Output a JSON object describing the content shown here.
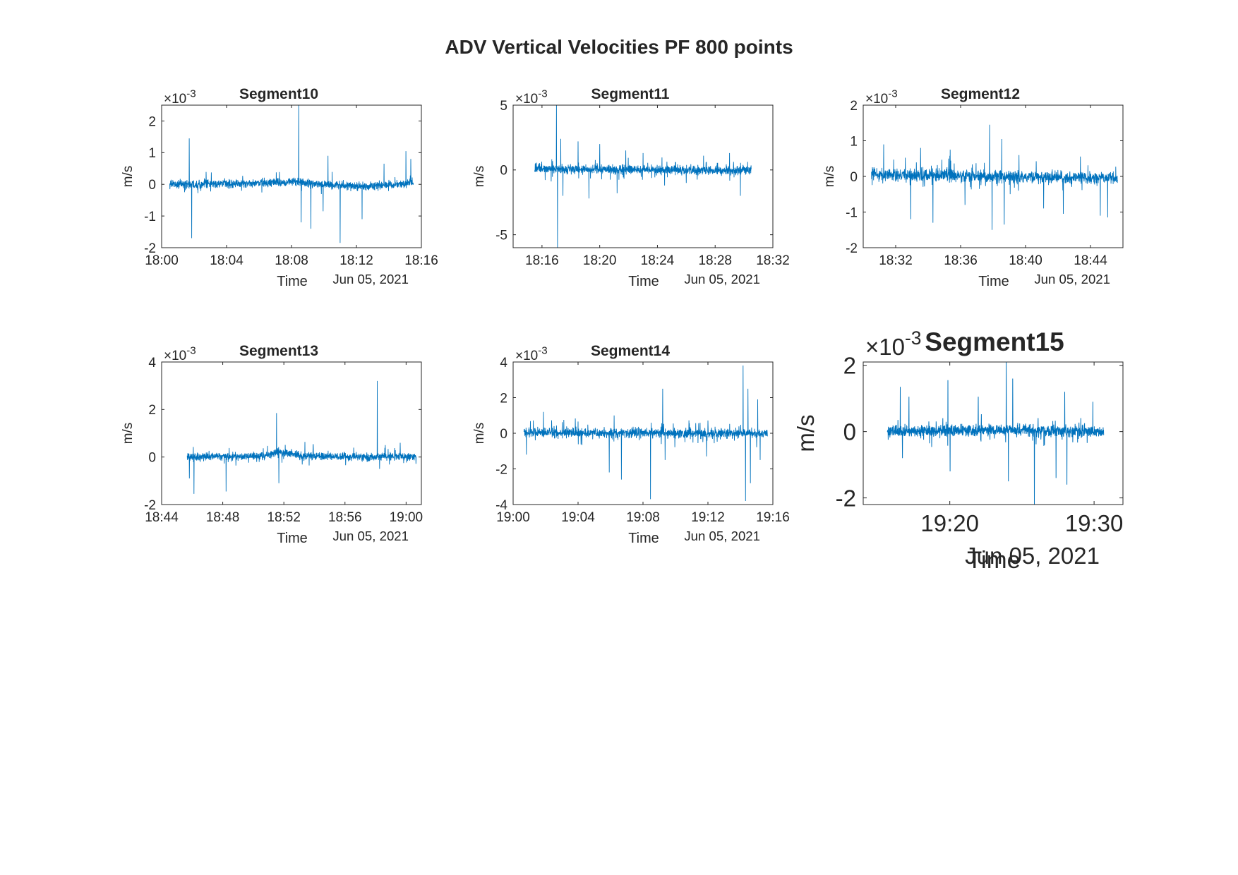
{
  "figure": {
    "title": "ADV Vertical Velocities PF 800 points",
    "line_color": "#0072BD"
  },
  "chart_data": [
    {
      "type": "line",
      "title": "Segment10",
      "xlabel": "Time",
      "ylabel": "m/s",
      "date_label": "Jun 05, 2021",
      "exponent_label": "×10",
      "exponent_power": "-3",
      "x_ticks": [
        "18:00",
        "18:04",
        "18:08",
        "18:12",
        "18:16"
      ],
      "x_range": [
        "18:00",
        "18:16"
      ],
      "data_span": [
        "18:00:30",
        "18:15:30"
      ],
      "y_ticks": [
        "-2",
        "-1",
        "0",
        "1",
        "2"
      ],
      "ylim": [
        -2,
        2.5
      ],
      "series": [
        {
          "baseline": [
            [
              0,
              0.0
            ],
            [
              0.3,
              0.02
            ],
            [
              0.5,
              0.08
            ],
            [
              0.65,
              0.0
            ],
            [
              0.8,
              -0.08
            ],
            [
              1,
              0.05
            ]
          ],
          "noise": 0.14,
          "spikes": [
            [
              0.08,
              1.45
            ],
            [
              0.09,
              -1.7
            ],
            [
              0.53,
              2.5
            ],
            [
              0.54,
              -1.2
            ],
            [
              0.58,
              -1.4
            ],
            [
              0.63,
              -0.85
            ],
            [
              0.65,
              0.9
            ],
            [
              0.7,
              -1.85
            ],
            [
              0.79,
              -1.1
            ],
            [
              0.88,
              0.65
            ],
            [
              0.97,
              1.05
            ],
            [
              0.99,
              0.8
            ]
          ]
        }
      ],
      "grid": false,
      "legend": "none"
    },
    {
      "type": "line",
      "title": "Segment11",
      "xlabel": "Time",
      "ylabel": "m/s",
      "date_label": "Jun 05, 2021",
      "exponent_label": "×10",
      "exponent_power": "-3",
      "x_ticks": [
        "18:16",
        "18:20",
        "18:24",
        "18:28",
        "18:32"
      ],
      "x_range": [
        "18:14",
        "18:32"
      ],
      "data_span": [
        "18:15:30",
        "18:30:30"
      ],
      "y_ticks": [
        "-5",
        "0",
        "5"
      ],
      "ylim": [
        -6,
        5
      ],
      "series": [
        {
          "baseline": [
            [
              0,
              0.1
            ],
            [
              0.5,
              0.0
            ],
            [
              1,
              -0.05
            ]
          ],
          "noise": 0.35,
          "spikes": [
            [
              0.1,
              5.0
            ],
            [
              0.105,
              -6.0
            ],
            [
              0.12,
              2.4
            ],
            [
              0.13,
              -2.0
            ],
            [
              0.2,
              2.2
            ],
            [
              0.25,
              -2.2
            ],
            [
              0.3,
              2.0
            ],
            [
              0.38,
              -1.8
            ],
            [
              0.42,
              1.5
            ],
            [
              0.5,
              1.3
            ],
            [
              0.6,
              -1.2
            ],
            [
              0.7,
              -1.0
            ],
            [
              0.78,
              1.1
            ],
            [
              0.9,
              1.3
            ],
            [
              0.95,
              -2.0
            ]
          ]
        }
      ],
      "grid": false,
      "legend": "none"
    },
    {
      "type": "line",
      "title": "Segment12",
      "xlabel": "Time",
      "ylabel": "m/s",
      "date_label": "Jun 05, 2021",
      "exponent_label": "×10",
      "exponent_power": "-3",
      "x_ticks": [
        "18:32",
        "18:36",
        "18:40",
        "18:44"
      ],
      "x_range": [
        "18:30",
        "18:46"
      ],
      "data_span": [
        "18:30:30",
        "18:45:40"
      ],
      "y_ticks": [
        "-2",
        "-1",
        "0",
        "1",
        "2"
      ],
      "ylim": [
        -2,
        2
      ],
      "series": [
        {
          "baseline": [
            [
              0,
              0.05
            ],
            [
              0.5,
              0.0
            ],
            [
              1,
              -0.05
            ]
          ],
          "noise": 0.18,
          "spikes": [
            [
              0.05,
              0.9
            ],
            [
              0.16,
              -1.2
            ],
            [
              0.2,
              0.8
            ],
            [
              0.25,
              -1.3
            ],
            [
              0.32,
              0.75
            ],
            [
              0.38,
              -0.8
            ],
            [
              0.48,
              1.45
            ],
            [
              0.49,
              -1.5
            ],
            [
              0.53,
              1.05
            ],
            [
              0.54,
              -1.35
            ],
            [
              0.6,
              0.6
            ],
            [
              0.7,
              -0.9
            ],
            [
              0.78,
              -1.05
            ],
            [
              0.93,
              -1.1
            ],
            [
              0.96,
              -1.15
            ]
          ]
        }
      ],
      "grid": false,
      "legend": "none"
    },
    {
      "type": "line",
      "title": "Segment13",
      "xlabel": "Time",
      "ylabel": "m/s",
      "date_label": "Jun 05, 2021",
      "exponent_label": "×10",
      "exponent_power": "-3",
      "x_ticks": [
        "18:44",
        "18:48",
        "18:52",
        "18:56",
        "19:00"
      ],
      "x_range": [
        "18:44",
        "19:01"
      ],
      "data_span": [
        "18:45:40",
        "19:00:40"
      ],
      "y_ticks": [
        "-2",
        "0",
        "2",
        "4"
      ],
      "ylim": [
        -2,
        4
      ],
      "series": [
        {
          "baseline": [
            [
              0,
              0.0
            ],
            [
              0.35,
              0.05
            ],
            [
              0.4,
              0.25
            ],
            [
              0.5,
              0.05
            ],
            [
              0.8,
              0.0
            ],
            [
              1,
              0.05
            ]
          ],
          "noise": 0.17,
          "spikes": [
            [
              0.01,
              -0.9
            ],
            [
              0.03,
              -1.55
            ],
            [
              0.17,
              -1.45
            ],
            [
              0.39,
              1.85
            ],
            [
              0.4,
              -1.1
            ],
            [
              0.83,
              3.2
            ],
            [
              0.84,
              -0.5
            ],
            [
              0.93,
              0.6
            ]
          ]
        }
      ],
      "grid": false,
      "legend": "none"
    },
    {
      "type": "line",
      "title": "Segment14",
      "xlabel": "Time",
      "ylabel": "m/s",
      "date_label": "Jun 05, 2021",
      "exponent_label": "×10",
      "exponent_power": "-3",
      "x_ticks": [
        "19:00",
        "19:04",
        "19:08",
        "19:12",
        "19:16"
      ],
      "x_range": [
        "19:00",
        "19:16"
      ],
      "data_span": [
        "19:00:40",
        "19:15:40"
      ],
      "y_ticks": [
        "-4",
        "-2",
        "0",
        "2",
        "4"
      ],
      "ylim": [
        -4,
        4
      ],
      "series": [
        {
          "baseline": [
            [
              0,
              0.05
            ],
            [
              0.5,
              0.0
            ],
            [
              1,
              0.0
            ]
          ],
          "noise": 0.28,
          "spikes": [
            [
              0.01,
              -1.2
            ],
            [
              0.08,
              1.2
            ],
            [
              0.35,
              -2.2
            ],
            [
              0.37,
              1.0
            ],
            [
              0.4,
              -2.6
            ],
            [
              0.52,
              -3.7
            ],
            [
              0.57,
              2.5
            ],
            [
              0.58,
              -1.5
            ],
            [
              0.75,
              -1.3
            ],
            [
              0.9,
              3.8
            ],
            [
              0.91,
              -3.8
            ],
            [
              0.92,
              2.5
            ],
            [
              0.93,
              -2.8
            ],
            [
              0.96,
              1.9
            ],
            [
              0.97,
              -1.5
            ]
          ]
        }
      ],
      "grid": false,
      "legend": "none"
    },
    {
      "type": "line",
      "title": "Segment15",
      "xlabel": "Time",
      "ylabel": "m/s",
      "date_label": "Jun 05, 2021",
      "exponent_label": "×10",
      "exponent_power": "-3",
      "x_ticks": [
        "19:20",
        "19:30"
      ],
      "x_range": [
        "19:14",
        "19:32"
      ],
      "data_span": [
        "19:15:40",
        "19:30:40"
      ],
      "y_ticks": [
        "-2",
        "0",
        "2"
      ],
      "ylim": [
        -2.2,
        2.1
      ],
      "series": [
        {
          "baseline": [
            [
              0,
              0.0
            ],
            [
              0.5,
              0.05
            ],
            [
              1,
              0.0
            ]
          ],
          "noise": 0.17,
          "spikes": [
            [
              0.06,
              1.35
            ],
            [
              0.07,
              -0.8
            ],
            [
              0.1,
              1.05
            ],
            [
              0.28,
              1.55
            ],
            [
              0.29,
              -1.2
            ],
            [
              0.42,
              1.05
            ],
            [
              0.55,
              2.1
            ],
            [
              0.56,
              -1.5
            ],
            [
              0.58,
              1.6
            ],
            [
              0.68,
              -2.2
            ],
            [
              0.78,
              -1.4
            ],
            [
              0.82,
              1.2
            ],
            [
              0.83,
              -1.6
            ],
            [
              0.95,
              0.9
            ]
          ]
        }
      ],
      "grid": false,
      "legend": "none"
    }
  ]
}
